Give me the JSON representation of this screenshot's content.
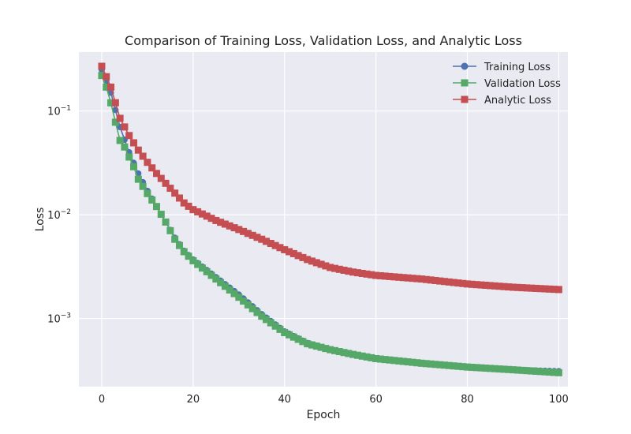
{
  "chart_data": {
    "type": "line",
    "title": "Comparison of Training Loss, Validation Loss, and Analytic Loss",
    "xlabel": "Epoch",
    "ylabel": "Loss",
    "x_scale": "linear",
    "y_scale": "log",
    "xlim": [
      -5,
      102
    ],
    "ylim": [
      0.00022,
      0.37
    ],
    "x_ticks": [
      0,
      20,
      40,
      60,
      80,
      100
    ],
    "x_tick_labels": [
      "0",
      "20",
      "40",
      "60",
      "80",
      "100"
    ],
    "y_ticks": [
      0.001,
      0.01,
      0.1
    ],
    "y_tick_base": [
      "10",
      "10",
      "10"
    ],
    "y_tick_exp": [
      "−3",
      "−2",
      "−1"
    ],
    "grid": true,
    "legend_position": "top-right",
    "x": {
      "start": 0,
      "end": 100,
      "step": 1
    },
    "series": [
      {
        "name": "Training Loss",
        "color": "#4c72b0",
        "marker": "circle",
        "anchors": [
          [
            0,
            0.25
          ],
          [
            2,
            0.15
          ],
          [
            4,
            0.07
          ],
          [
            6,
            0.04
          ],
          [
            8,
            0.025
          ],
          [
            10,
            0.017
          ],
          [
            12,
            0.012
          ],
          [
            14,
            0.0085
          ],
          [
            16,
            0.006
          ],
          [
            18,
            0.0045
          ],
          [
            20,
            0.0037
          ],
          [
            25,
            0.0025
          ],
          [
            30,
            0.0017
          ],
          [
            35,
            0.0011
          ],
          [
            40,
            0.00075
          ],
          [
            45,
            0.00058
          ],
          [
            50,
            0.0005
          ],
          [
            55,
            0.00045
          ],
          [
            60,
            0.00041
          ],
          [
            70,
            0.00037
          ],
          [
            80,
            0.00034
          ],
          [
            90,
            0.00032
          ],
          [
            100,
            0.00031
          ]
        ]
      },
      {
        "name": "Validation Loss",
        "color": "#55a868",
        "marker": "square",
        "anchors": [
          [
            0,
            0.22
          ],
          [
            1,
            0.17
          ],
          [
            2,
            0.12
          ],
          [
            3,
            0.078
          ],
          [
            4,
            0.052
          ],
          [
            5,
            0.045
          ],
          [
            6,
            0.036
          ],
          [
            7,
            0.029
          ],
          [
            8,
            0.022
          ],
          [
            10,
            0.016
          ],
          [
            12,
            0.012
          ],
          [
            14,
            0.0085
          ],
          [
            16,
            0.0058
          ],
          [
            18,
            0.0044
          ],
          [
            20,
            0.0036
          ],
          [
            25,
            0.0024
          ],
          [
            30,
            0.0016
          ],
          [
            35,
            0.00105
          ],
          [
            40,
            0.00073
          ],
          [
            45,
            0.00057
          ],
          [
            50,
            0.0005
          ],
          [
            55,
            0.00045
          ],
          [
            60,
            0.00041
          ],
          [
            70,
            0.00037
          ],
          [
            80,
            0.00034
          ],
          [
            90,
            0.00032
          ],
          [
            100,
            0.0003
          ]
        ]
      },
      {
        "name": "Analytic Loss",
        "color": "#c44e52",
        "marker": "square",
        "anchors": [
          [
            0,
            0.27
          ],
          [
            2,
            0.17
          ],
          [
            4,
            0.085
          ],
          [
            6,
            0.058
          ],
          [
            8,
            0.042
          ],
          [
            10,
            0.032
          ],
          [
            12,
            0.025
          ],
          [
            15,
            0.018
          ],
          [
            18,
            0.013
          ],
          [
            20,
            0.0112
          ],
          [
            25,
            0.0088
          ],
          [
            30,
            0.0072
          ],
          [
            35,
            0.0058
          ],
          [
            40,
            0.0046
          ],
          [
            45,
            0.0037
          ],
          [
            50,
            0.0031
          ],
          [
            55,
            0.0028
          ],
          [
            60,
            0.0026
          ],
          [
            70,
            0.0024
          ],
          [
            80,
            0.00215
          ],
          [
            90,
            0.002
          ],
          [
            100,
            0.0019
          ]
        ]
      }
    ]
  }
}
